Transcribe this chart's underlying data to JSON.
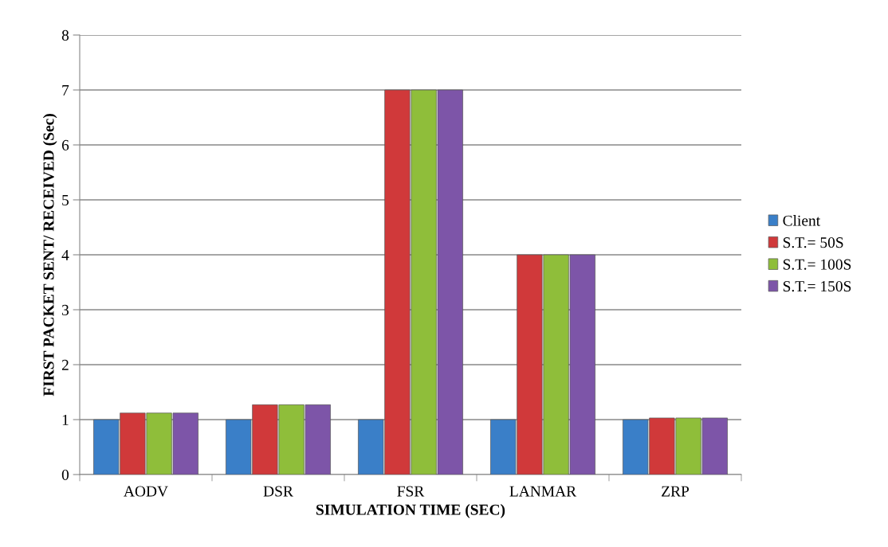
{
  "chart_data": {
    "type": "bar",
    "xlabel": "SIMULATION TIME (SEC)",
    "ylabel": "FIRST PACKET SENT/ RECEIVED (Sec)",
    "categories": [
      "AODV",
      "DSR",
      "FSR",
      "LANMAR",
      "ZRP"
    ],
    "series": [
      {
        "name": "Client",
        "color": "#3a7fc8",
        "values": [
          1,
          1,
          1,
          1,
          1
        ]
      },
      {
        "name": "S.T.= 50S",
        "color": "#d0393a",
        "values": [
          1.12,
          1.27,
          7,
          4,
          1.03
        ]
      },
      {
        "name": "S.T.= 100S",
        "color": "#8fbe3a",
        "values": [
          1.12,
          1.27,
          7,
          4,
          1.03
        ]
      },
      {
        "name": "S.T.= 150S",
        "color": "#7d55a8",
        "values": [
          1.12,
          1.27,
          7,
          4,
          1.03
        ]
      }
    ],
    "ylim": [
      0,
      8
    ],
    "yticks": [
      0,
      1,
      2,
      3,
      4,
      5,
      6,
      7,
      8
    ],
    "grid": "y",
    "legend": "right"
  }
}
